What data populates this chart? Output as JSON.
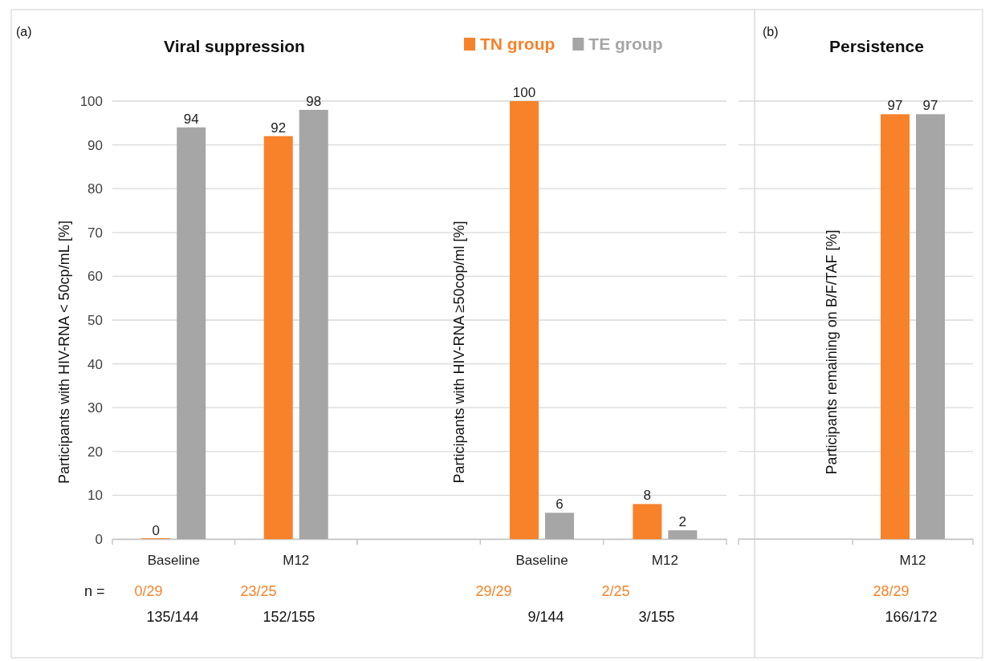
{
  "chart_data": [
    {
      "type": "bar",
      "title": "Viral suppression",
      "ylabel": "Participants with HIV-RNA < 50cp/mL [%]",
      "categories": [
        "Baseline",
        "M12"
      ],
      "series": [
        {
          "color": "#f7822a",
          "values": [
            0,
            92
          ]
        },
        {
          "color": "#a6a6a6",
          "values": [
            94,
            98
          ]
        }
      ],
      "ylim": [
        0,
        100
      ],
      "yticks": [
        0,
        10,
        20,
        30,
        40,
        50,
        60,
        70,
        80,
        90,
        100
      ],
      "grid": "y",
      "data_labels": true,
      "legend": false,
      "annotations": [
        "(a)",
        "n =",
        "0/29",
        "23/25",
        "135/144",
        "152/155"
      ]
    },
    {
      "type": "bar",
      "ylabel": "Participants with HIV-RNA ≥50cop/ml [%]",
      "categories": [
        null,
        "Baseline",
        "M12"
      ],
      "series": [
        {
          "name": "TN group",
          "color": "#f7822a",
          "values": [
            null,
            100,
            8
          ]
        },
        {
          "name": "TE group",
          "color": "#a6a6a6",
          "values": [
            null,
            6,
            2
          ]
        }
      ],
      "ylim": [
        0,
        100
      ],
      "yticks": [
        0,
        10,
        20,
        30,
        40,
        50,
        60,
        70,
        80,
        90,
        100
      ],
      "grid": "y",
      "tick_labels": "x",
      "data_labels": true,
      "legend": "top",
      "annotations": [
        "29/29",
        "2/25",
        "9/144",
        "3/155"
      ]
    },
    {
      "type": "bar",
      "title": "Persistence",
      "ylabel": "Participants remaining on B/F/TAF [%]",
      "categories": [
        "M12"
      ],
      "series": [
        {
          "color": "#f7822a",
          "values": [
            97
          ]
        },
        {
          "color": "#a6a6a6",
          "values": [
            97
          ]
        }
      ],
      "ylim": [
        0,
        100
      ],
      "yticks": [
        0,
        10,
        20,
        30,
        40,
        50,
        60,
        70,
        80,
        90,
        100
      ],
      "grid": "y",
      "tick_labels": "x",
      "data_labels": true,
      "legend": false,
      "annotations": [
        "(b)",
        "28/29",
        "166/172"
      ]
    }
  ]
}
